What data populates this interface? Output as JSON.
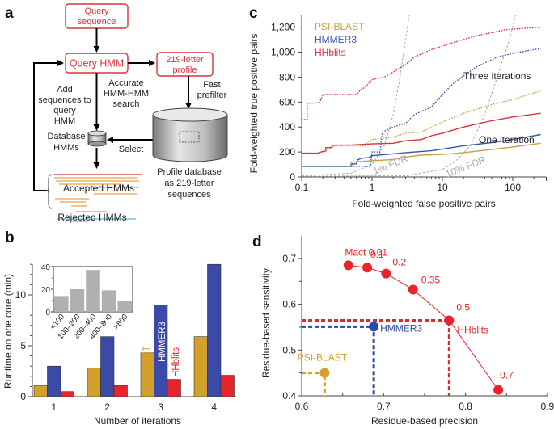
{
  "panels": {
    "a": {
      "letter": "a",
      "boxes": {
        "query_sequence": [
          "Query",
          "sequence"
        ],
        "query_hmm": "Query HMM",
        "profile": [
          "219-letter",
          "profile"
        ]
      },
      "labels": {
        "accurate": [
          "Accurate",
          "HMM-HMM",
          "search"
        ],
        "fast": [
          "Fast",
          "prefilter"
        ],
        "add": [
          "Add",
          "sequences to",
          "query",
          "HMM"
        ],
        "database_hmms": [
          "Database",
          "HMMs"
        ],
        "select": "Select",
        "profile_db": [
          "Profile database",
          "as 219-letter",
          "sequences"
        ],
        "accepted": "Accepted HMMs",
        "rejected": "Rejected HMMs"
      },
      "colors": {
        "box": "#d9333b",
        "accepted": "#e8a24a",
        "rejected": "#5bb8e0",
        "top_hit": "#d9333b"
      }
    },
    "b": {
      "letter": "b"
    },
    "c": {
      "letter": "c",
      "annotations": {
        "three": "Three iterations",
        "one": "One iteration",
        "fdr1": "1% FDR",
        "fdr10": "10% FDR"
      }
    },
    "d": {
      "letter": "d",
      "mact_prefix": "Mact"
    }
  },
  "chart_data": [
    {
      "id": "b-main",
      "type": "bar",
      "title": "",
      "xlabel": "Number of iterations",
      "ylabel": "Runtime on one core (min)",
      "categories": [
        "1",
        "2",
        "3",
        "4"
      ],
      "ylim": [
        0,
        13
      ],
      "yticks": [
        0,
        5,
        10
      ],
      "series": [
        {
          "name": "PSI-BLAST",
          "color": "#d4a02c",
          "values": [
            1.1,
            2.8,
            4.3,
            5.9
          ]
        },
        {
          "name": "HMMER3",
          "color": "#3a4aa6",
          "values": [
            3.0,
            5.9,
            9.0,
            13.0
          ]
        },
        {
          "name": "HHblits",
          "color": "#e8232b",
          "values": [
            0.5,
            1.1,
            1.7,
            2.1
          ]
        }
      ],
      "legend": "rotated labels above group 3"
    },
    {
      "id": "b-inset",
      "type": "bar",
      "categories": [
        "<100",
        "100–200",
        "200–400",
        "400–800",
        ">800"
      ],
      "values": [
        14,
        20,
        37,
        19,
        10
      ],
      "ylim": [
        0,
        40
      ],
      "yticks": [
        0,
        20,
        40
      ],
      "color": "#b0b0b0"
    },
    {
      "id": "c",
      "type": "line",
      "xscale": "log",
      "xlabel": "Fold-weighted false positive pairs",
      "ylabel": "Fold-weighted true positive pairs",
      "xlim": [
        0.1,
        300
      ],
      "ylim": [
        0,
        1300
      ],
      "xticks": [
        "0.1",
        "1",
        "10",
        "100"
      ],
      "yticks": [
        "0",
        "200",
        "400",
        "600",
        "800",
        "1,000",
        "1,200"
      ],
      "legend": [
        {
          "name": "PSI-BLAST",
          "color": "#c9a04a"
        },
        {
          "name": "HMMER3",
          "color": "#3a56a8"
        },
        {
          "name": "HHblits",
          "color": "#d9333b"
        }
      ],
      "legend_position": "top-left",
      "series": [
        {
          "name": "HHblits one iteration",
          "style": "solid",
          "color": "#d9333b",
          "points": [
            [
              0.1,
              190
            ],
            [
              0.17,
              190
            ],
            [
              0.2,
              205
            ],
            [
              0.22,
              205
            ],
            [
              0.22,
              235
            ],
            [
              0.26,
              235
            ],
            [
              0.28,
              255
            ],
            [
              0.5,
              255
            ],
            [
              1,
              265
            ],
            [
              2,
              270
            ],
            [
              3,
              290
            ],
            [
              5,
              300
            ],
            [
              7,
              330
            ],
            [
              10,
              350
            ],
            [
              20,
              400
            ],
            [
              50,
              450
            ],
            [
              100,
              480
            ],
            [
              250,
              510
            ]
          ]
        },
        {
          "name": "HMMER3 one iteration",
          "style": "solid",
          "color": "#3a56a8",
          "points": [
            [
              0.1,
              85
            ],
            [
              0.5,
              85
            ],
            [
              0.52,
              105
            ],
            [
              0.6,
              105
            ],
            [
              0.62,
              135
            ],
            [
              0.7,
              150
            ],
            [
              0.9,
              155
            ],
            [
              1,
              170
            ],
            [
              2,
              185
            ],
            [
              3,
              195
            ],
            [
              7,
              210
            ],
            [
              20,
              250
            ],
            [
              50,
              275
            ],
            [
              100,
              300
            ],
            [
              250,
              340
            ]
          ]
        },
        {
          "name": "PSI-BLAST one iteration",
          "style": "solid",
          "color": "#c9a04a",
          "points": [
            [
              0.5,
              85
            ],
            [
              0.5,
              120
            ],
            [
              1,
              130
            ],
            [
              2,
              140
            ],
            [
              3,
              160
            ],
            [
              5,
              175
            ],
            [
              10,
              180
            ],
            [
              20,
              195
            ],
            [
              50,
              220
            ],
            [
              100,
              240
            ],
            [
              250,
              270
            ]
          ]
        },
        {
          "name": "HHblits three iterations",
          "style": "dotted",
          "color": "#d9333b",
          "points": [
            [
              0.1,
              460
            ],
            [
              0.12,
              460
            ],
            [
              0.12,
              590
            ],
            [
              0.18,
              595
            ],
            [
              0.2,
              660
            ],
            [
              0.4,
              660
            ],
            [
              0.6,
              660
            ],
            [
              0.7,
              700
            ],
            [
              0.8,
              720
            ],
            [
              1,
              780
            ],
            [
              1.5,
              800
            ],
            [
              2,
              840
            ],
            [
              3,
              900
            ],
            [
              4,
              960
            ],
            [
              7,
              1020
            ],
            [
              15,
              1080
            ],
            [
              30,
              1130
            ],
            [
              80,
              1180
            ],
            [
              250,
              1200
            ]
          ]
        },
        {
          "name": "HMMER3 three iterations",
          "style": "dotted",
          "color": "#3a56a8",
          "points": [
            [
              0.1,
              85
            ],
            [
              0.95,
              85
            ],
            [
              1,
              200
            ],
            [
              1.3,
              200
            ],
            [
              1.4,
              360
            ],
            [
              2,
              400
            ],
            [
              3,
              430
            ],
            [
              4,
              500
            ],
            [
              7,
              560
            ],
            [
              10,
              660
            ],
            [
              15,
              760
            ],
            [
              30,
              880
            ],
            [
              60,
              960
            ],
            [
              100,
              990
            ],
            [
              250,
              1030
            ]
          ]
        },
        {
          "name": "PSI-BLAST three iterations",
          "style": "dotted",
          "color": "#c9a04a",
          "points": [
            [
              0.2,
              190
            ],
            [
              0.3,
              250
            ],
            [
              0.8,
              250
            ],
            [
              0.9,
              290
            ],
            [
              1,
              300
            ],
            [
              2,
              320
            ],
            [
              3,
              350
            ],
            [
              5,
              360
            ],
            [
              10,
              440
            ],
            [
              20,
              510
            ],
            [
              50,
              580
            ],
            [
              100,
              620
            ],
            [
              250,
              690
            ]
          ]
        },
        {
          "name": "1% FDR",
          "style": "dashed",
          "color": "#aaaaaa",
          "points": [
            [
              0.1,
              10
            ],
            [
              0.5,
              30
            ],
            [
              1,
              100
            ],
            [
              1.5,
              250
            ],
            [
              2,
              500
            ],
            [
              2.5,
              800
            ],
            [
              3,
              1100
            ],
            [
              3.4,
              1300
            ]
          ]
        },
        {
          "name": "10% FDR",
          "style": "dashed",
          "color": "#aaaaaa",
          "points": [
            [
              0.1,
              5
            ],
            [
              3,
              10
            ],
            [
              10,
              60
            ],
            [
              15,
              120
            ],
            [
              25,
              250
            ],
            [
              40,
              500
            ],
            [
              60,
              800
            ],
            [
              90,
              1100
            ],
            [
              110,
              1300
            ]
          ]
        }
      ]
    },
    {
      "id": "d",
      "type": "scatter",
      "xlabel": "Residue-based precision",
      "ylabel": "Residue-based sensitivity",
      "xlim": [
        0.6,
        0.9
      ],
      "ylim": [
        0.4,
        0.75
      ],
      "xticks": [
        "0.6",
        "0.7",
        "0.8",
        "0.9"
      ],
      "yticks": [
        "0.4",
        "0.5",
        "0.6",
        "0.7"
      ],
      "series": [
        {
          "name": "HHblits",
          "color": "#e8232b",
          "connected": true,
          "points": [
            {
              "x": 0.657,
              "y": 0.685,
              "label": "Mact 0.01"
            },
            {
              "x": 0.68,
              "y": 0.68,
              "label": "0.1"
            },
            {
              "x": 0.703,
              "y": 0.667,
              "label": "0.2"
            },
            {
              "x": 0.736,
              "y": 0.632,
              "label": "0.35"
            },
            {
              "x": 0.78,
              "y": 0.565,
              "label": "0.5"
            },
            {
              "x": 0.84,
              "y": 0.413,
              "label": "0.7"
            }
          ],
          "highlight": {
            "x": 0.78,
            "y": 0.565,
            "label": "HHblits"
          }
        },
        {
          "name": "HMMER3",
          "color": "#2a4aa6",
          "points": [
            {
              "x": 0.688,
              "y": 0.551,
              "label": "HMMER3"
            }
          ]
        },
        {
          "name": "PSI-BLAST",
          "color": "#d4a02c",
          "points": [
            {
              "x": 0.628,
              "y": 0.45,
              "label": "PSI-BLAST"
            }
          ]
        }
      ]
    }
  ]
}
